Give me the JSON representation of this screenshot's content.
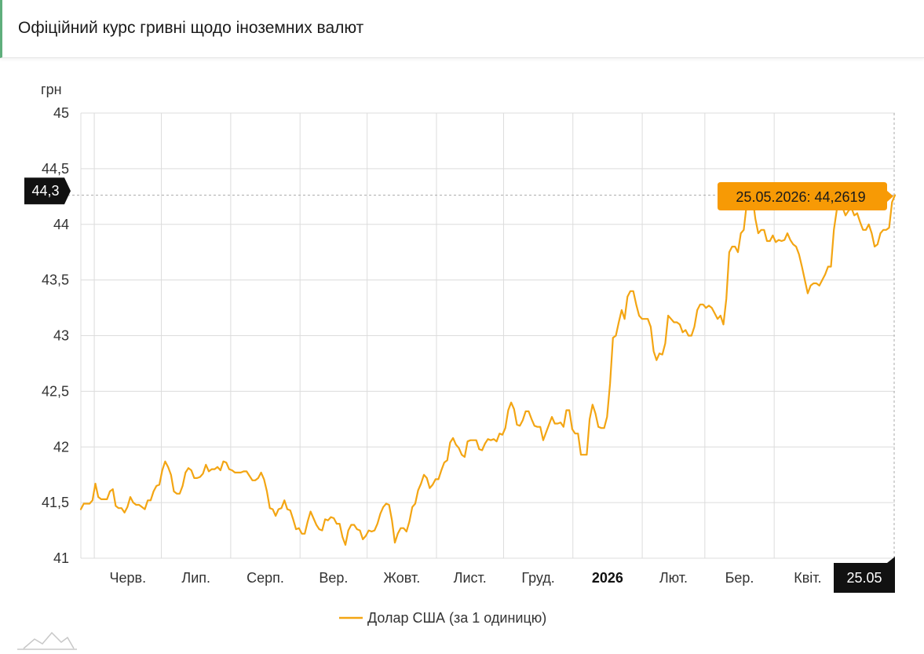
{
  "title": "Офіційний курс гривні щодо іноземних валют",
  "colors": {
    "series": "#f3a513",
    "tooltip_bg": "#f79a05",
    "marker_bg": "#111111",
    "grid": "#dcdcdc",
    "accent": "#5fae7c"
  },
  "icons": {
    "logo": "mountains-logo-icon"
  },
  "chart_data": {
    "type": "line",
    "y_unit_label": "грн",
    "ylim": [
      41,
      45
    ],
    "y_ticks": [
      "41",
      "41,5",
      "42",
      "42,5",
      "43",
      "43,5",
      "44",
      "44,5",
      "45"
    ],
    "x_start": "26.05.2025",
    "x_end": "25.05.2026",
    "x_ticks": [
      {
        "label": "Черв.",
        "date": "01.06.2025"
      },
      {
        "label": "Лип.",
        "date": "01.07.2025"
      },
      {
        "label": "Серп.",
        "date": "01.08.2025"
      },
      {
        "label": "Вер.",
        "date": "01.09.2025"
      },
      {
        "label": "Жовт.",
        "date": "01.10.2025"
      },
      {
        "label": "Лист.",
        "date": "01.11.2025"
      },
      {
        "label": "Груд.",
        "date": "01.12.2025"
      },
      {
        "label": "2026",
        "date": "01.01.2026",
        "bold": true
      },
      {
        "label": "Лют.",
        "date": "01.02.2026"
      },
      {
        "label": "Бер.",
        "date": "01.03.2026"
      },
      {
        "label": "Квіт.",
        "date": "01.04.2026"
      }
    ],
    "grid": true,
    "legend_position": "bottom",
    "series": [
      {
        "name": "Долар США (за 1 одиницю)",
        "values": [
          41.44,
          41.49,
          41.49,
          41.49,
          41.52,
          41.67,
          41.55,
          41.53,
          41.53,
          41.53,
          41.6,
          41.62,
          41.47,
          41.45,
          41.45,
          41.41,
          41.46,
          41.55,
          41.5,
          41.48,
          41.48,
          41.46,
          41.44,
          41.52,
          41.52,
          41.6,
          41.65,
          41.66,
          41.79,
          41.87,
          41.82,
          41.75,
          41.6,
          41.58,
          41.58,
          41.65,
          41.77,
          41.81,
          41.79,
          41.72,
          41.72,
          41.73,
          41.76,
          41.84,
          41.78,
          41.8,
          41.8,
          41.82,
          41.79,
          41.87,
          41.86,
          41.8,
          41.79,
          41.77,
          41.77,
          41.77,
          41.78,
          41.78,
          41.74,
          41.7,
          41.7,
          41.72,
          41.77,
          41.71,
          41.6,
          41.45,
          41.44,
          41.38,
          41.44,
          41.45,
          41.52,
          41.44,
          41.43,
          41.35,
          41.26,
          41.27,
          41.22,
          41.22,
          41.33,
          41.42,
          41.36,
          41.3,
          41.26,
          41.25,
          41.35,
          41.34,
          41.37,
          41.36,
          41.31,
          41.31,
          41.19,
          41.12,
          41.25,
          41.3,
          41.3,
          41.26,
          41.25,
          41.17,
          41.2,
          41.25,
          41.24,
          41.25,
          41.31,
          41.4,
          41.46,
          41.49,
          41.48,
          41.34,
          41.14,
          41.22,
          41.27,
          41.27,
          41.24,
          41.33,
          41.46,
          41.49,
          41.61,
          41.67,
          41.75,
          41.72,
          41.63,
          41.66,
          41.71,
          41.71,
          41.79,
          41.86,
          41.88,
          42.04,
          42.08,
          42.02,
          41.99,
          41.93,
          41.91,
          42.05,
          42.06,
          42.06,
          42.06,
          41.98,
          41.97,
          42.03,
          42.07,
          42.06,
          42.07,
          42.05,
          42.12,
          42.11,
          42.17,
          42.33,
          42.4,
          42.34,
          42.2,
          42.19,
          42.24,
          42.32,
          42.32,
          42.25,
          42.19,
          42.18,
          42.18,
          42.06,
          42.13,
          42.2,
          42.27,
          42.21,
          42.21,
          42.22,
          42.18,
          42.33,
          42.33,
          42.16,
          42.12,
          42.12,
          41.93,
          41.93,
          41.93,
          42.25,
          42.38,
          42.3,
          42.18,
          42.17,
          42.17,
          42.27,
          42.57,
          42.98,
          43.0,
          43.12,
          43.23,
          43.15,
          43.35,
          43.4,
          43.4,
          43.28,
          43.18,
          43.15,
          43.15,
          43.15,
          43.08,
          42.86,
          42.78,
          42.84,
          42.83,
          42.93,
          43.18,
          43.15,
          43.12,
          43.12,
          43.1,
          43.03,
          43.05,
          43.0,
          43.0,
          43.08,
          43.23,
          43.28,
          43.28,
          43.25,
          43.27,
          43.25,
          43.2,
          43.15,
          43.18,
          43.1,
          43.33,
          43.75,
          43.8,
          43.8,
          43.75,
          43.92,
          43.95,
          44.18,
          44.22,
          44.25,
          44.05,
          43.92,
          43.95,
          43.95,
          43.85,
          43.85,
          43.9,
          43.84,
          43.86,
          43.85,
          43.86,
          43.92,
          43.86,
          43.82,
          43.8,
          43.73,
          43.62,
          43.5,
          43.38,
          43.45,
          43.47,
          43.47,
          43.45,
          43.5,
          43.55,
          43.62,
          43.62,
          43.95,
          44.13,
          44.22,
          44.15,
          44.08,
          44.12,
          44.15,
          44.08,
          44.1,
          44.02,
          43.95,
          43.95,
          44.0,
          43.92,
          43.8,
          43.82,
          43.92,
          43.95,
          43.95,
          43.97,
          44.2,
          44.2619
        ]
      }
    ],
    "annotations": {
      "tooltip": "25.05.2026: 44,2619",
      "y_marker": "44,3",
      "x_marker": "25.05"
    }
  }
}
